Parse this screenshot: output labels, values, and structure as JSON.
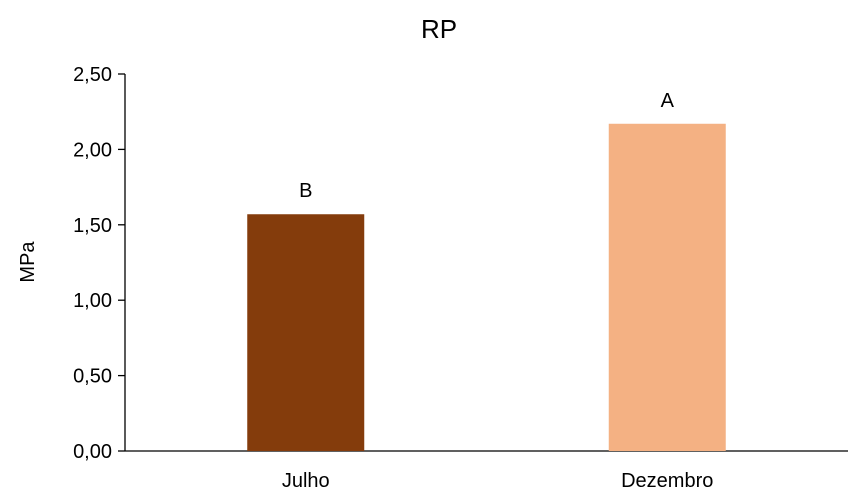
{
  "chart_data": {
    "type": "bar",
    "title": "RP",
    "xlabel": "",
    "ylabel": "MPa",
    "categories": [
      "Julho",
      "Dezembro"
    ],
    "series": [
      {
        "values": [
          1.57,
          2.17
        ],
        "colors": [
          "#843C0C",
          "#F4B183"
        ],
        "labels": [
          "B",
          "A"
        ]
      }
    ],
    "ylim": [
      0,
      2.5
    ],
    "yticks": [
      0,
      0.5,
      1.0,
      1.5,
      2.0,
      2.5
    ],
    "ytick_labels": [
      "0,00",
      "0,50",
      "1,00",
      "1,50",
      "2,00",
      "2,50"
    ],
    "grid": false,
    "legend": "none"
  }
}
